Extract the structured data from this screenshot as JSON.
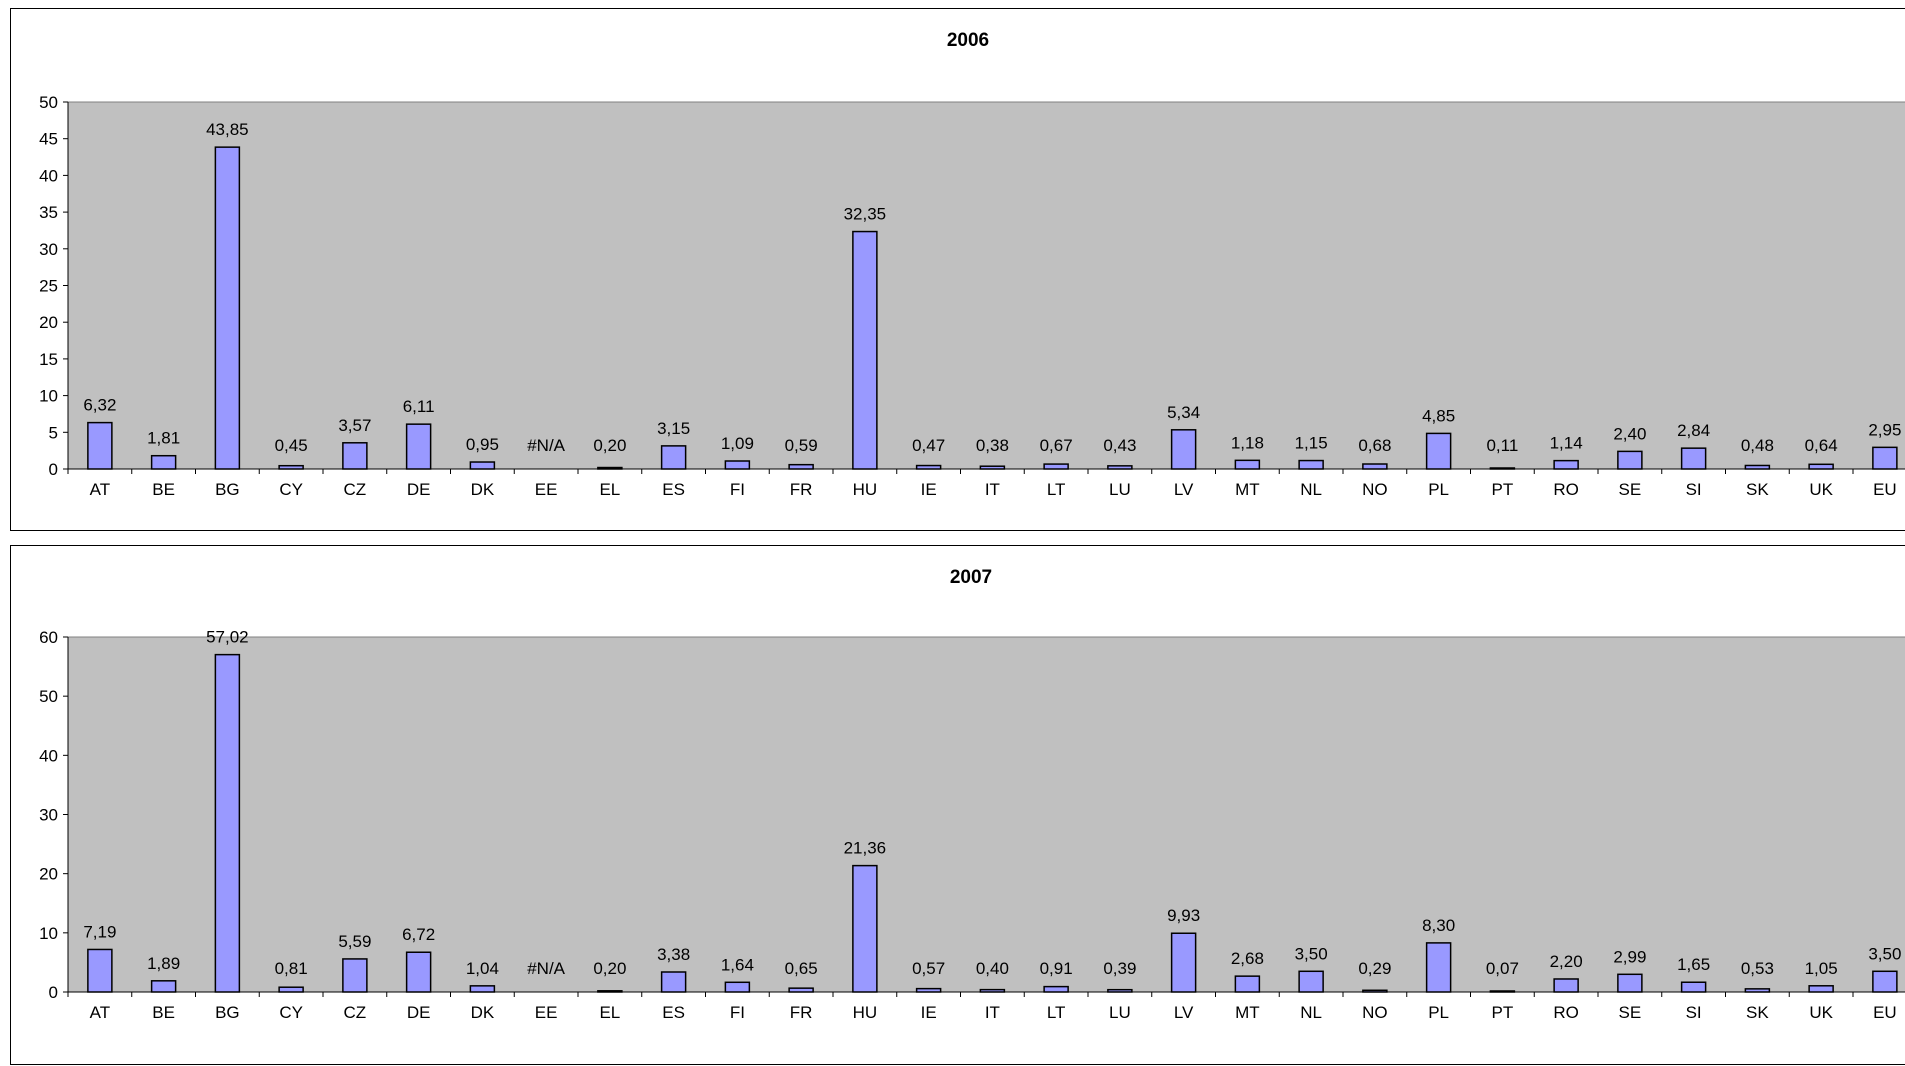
{
  "chart_data": [
    {
      "type": "bar",
      "title": "2006",
      "categories": [
        "AT",
        "BE",
        "BG",
        "CY",
        "CZ",
        "DE",
        "DK",
        "EE",
        "EL",
        "ES",
        "FI",
        "FR",
        "HU",
        "IE",
        "IT",
        "LT",
        "LU",
        "LV",
        "MT",
        "NL",
        "NO",
        "PL",
        "PT",
        "RO",
        "SE",
        "SI",
        "SK",
        "UK",
        "EU"
      ],
      "values": [
        6.32,
        1.81,
        43.85,
        0.45,
        3.57,
        6.11,
        0.95,
        null,
        0.2,
        3.15,
        1.09,
        0.59,
        32.35,
        0.47,
        0.38,
        0.67,
        0.43,
        5.34,
        1.18,
        1.15,
        0.68,
        4.85,
        0.11,
        1.14,
        2.4,
        2.84,
        0.48,
        0.64,
        2.95
      ],
      "data_labels": [
        "6,32",
        "1,81",
        "43,85",
        "0,45",
        "3,57",
        "6,11",
        "0,95",
        "#N/A",
        "0,20",
        "3,15",
        "1,09",
        "0,59",
        "32,35",
        "0,47",
        "0,38",
        "0,67",
        "0,43",
        "5,34",
        "1,18",
        "1,15",
        "0,68",
        "4,85",
        "0,11",
        "1,14",
        "2,40",
        "2,84",
        "0,48",
        "0,64",
        "2,95"
      ],
      "ylim": [
        0,
        50
      ],
      "yticks": [
        0,
        5,
        10,
        15,
        20,
        25,
        30,
        35,
        40,
        45,
        50
      ],
      "xlabel": "",
      "ylabel": "",
      "grid": false,
      "plot_background": "#C0C0C0",
      "bar_color": "#9999FF"
    },
    {
      "type": "bar",
      "title": "2007",
      "categories": [
        "AT",
        "BE",
        "BG",
        "CY",
        "CZ",
        "DE",
        "DK",
        "EE",
        "EL",
        "ES",
        "FI",
        "FR",
        "HU",
        "IE",
        "IT",
        "LT",
        "LU",
        "LV",
        "MT",
        "NL",
        "NO",
        "PL",
        "PT",
        "RO",
        "SE",
        "SI",
        "SK",
        "UK",
        "EU"
      ],
      "values": [
        7.19,
        1.89,
        57.02,
        0.81,
        5.59,
        6.72,
        1.04,
        null,
        0.2,
        3.38,
        1.64,
        0.65,
        21.36,
        0.57,
        0.4,
        0.91,
        0.39,
        9.93,
        2.68,
        3.5,
        0.29,
        8.3,
        0.07,
        2.2,
        2.99,
        1.65,
        0.53,
        1.05,
        3.5
      ],
      "data_labels": [
        "7,19",
        "1,89",
        "57,02",
        "0,81",
        "5,59",
        "6,72",
        "1,04",
        "#N/A",
        "0,20",
        "3,38",
        "1,64",
        "0,65",
        "21,36",
        "0,57",
        "0,40",
        "0,91",
        "0,39",
        "9,93",
        "2,68",
        "3,50",
        "0,29",
        "8,30",
        "0,07",
        "2,20",
        "2,99",
        "1,65",
        "0,53",
        "1,05",
        "3,50"
      ],
      "ylim": [
        0,
        60
      ],
      "yticks": [
        0,
        10,
        20,
        30,
        40,
        50,
        60
      ],
      "xlabel": "",
      "ylabel": "",
      "grid": false,
      "plot_background": "#C0C0C0",
      "bar_color": "#9999FF"
    }
  ]
}
